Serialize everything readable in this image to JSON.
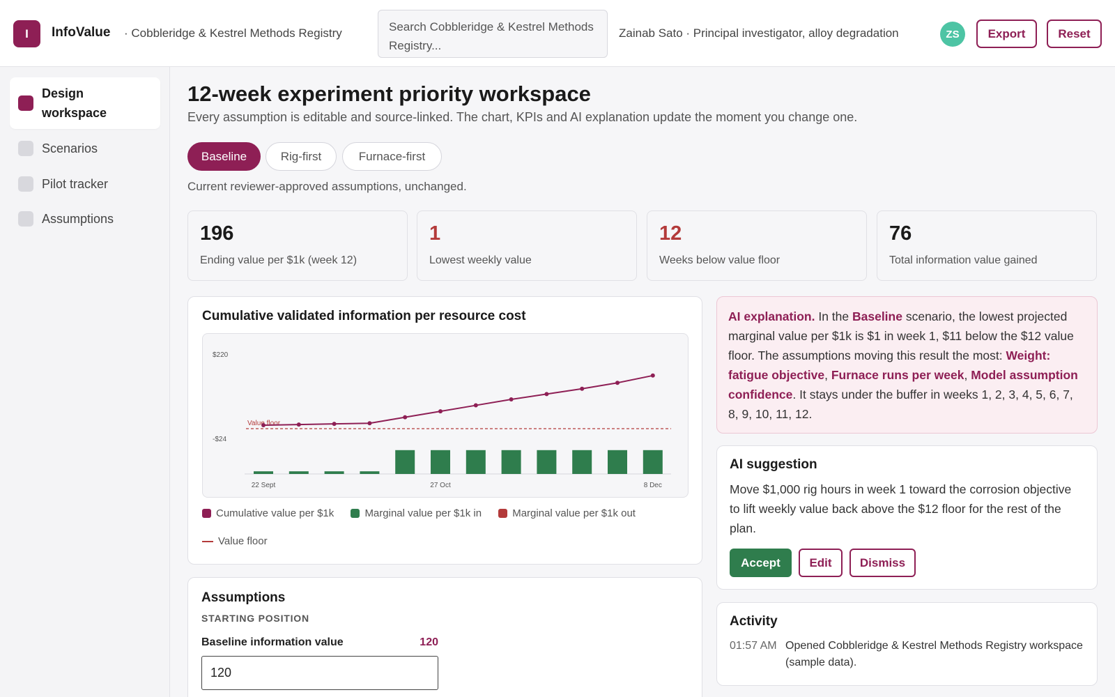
{
  "header": {
    "logo_letter": "I",
    "app_name": "InfoValue",
    "registry": "· Cobbleridge & Kestrel Methods Registry",
    "search_placeholder": "Search Cobbleridge & Kestrel Methods Registry...",
    "user": "Zainab Sato · Principal investigator, alloy degradation",
    "avatar_initials": "ZS",
    "export_label": "Export",
    "reset_label": "Reset"
  },
  "sidebar": {
    "items": [
      {
        "label": "Design workspace",
        "active": true
      },
      {
        "label": "Scenarios",
        "active": false
      },
      {
        "label": "Pilot tracker",
        "active": false
      },
      {
        "label": "Assumptions",
        "active": false
      }
    ]
  },
  "main": {
    "title": "12-week experiment priority workspace",
    "subtitle": "Every assumption is editable and source-linked. The chart, KPIs and AI explanation update the moment you change one.",
    "tabs": [
      {
        "label": "Baseline",
        "active": true
      },
      {
        "label": "Rig-first",
        "active": false
      },
      {
        "label": "Furnace-first",
        "active": false
      }
    ],
    "scenario_note": "Current reviewer-approved assumptions, unchanged."
  },
  "kpis": [
    {
      "value": "196",
      "label": "Ending value per $1k (week 12)",
      "alert": false
    },
    {
      "value": "1",
      "label": "Lowest weekly value",
      "alert": true
    },
    {
      "value": "12",
      "label": "Weeks below value floor",
      "alert": true
    },
    {
      "value": "76",
      "label": "Total information value gained",
      "alert": false
    }
  ],
  "chart_card": {
    "title": "Cumulative validated information per resource cost"
  },
  "chart_data": {
    "type": "bar",
    "title": "Cumulative validated information per resource cost",
    "y_tick_labels": [
      "$220",
      "-$24"
    ],
    "x_tick_labels": [
      "22 Sept",
      "27 Oct",
      "8 Dec"
    ],
    "value_floor_label": "Value floor",
    "series": [
      {
        "name": "Cumulative value per $1k",
        "kind": "line",
        "color": "#8e1f55",
        "values": [
          121,
          122,
          123,
          124,
          133,
          142,
          151,
          160,
          168,
          176,
          185,
          196
        ]
      },
      {
        "name": "Marginal value per $1k in",
        "kind": "bar",
        "color": "#2f7d4d",
        "values": [
          1,
          1,
          1,
          1,
          9,
          9,
          9,
          9,
          9,
          9,
          9,
          9
        ]
      },
      {
        "name": "Marginal value per $1k out",
        "kind": "bar",
        "color": "#b33a3a",
        "values": []
      }
    ],
    "value_floor": 12,
    "legend_extra": "Value floor",
    "ylim": [
      -24,
      220
    ]
  },
  "ai_explanation": {
    "lead": "AI explanation.",
    "t1": " In the ",
    "scenario": "Baseline",
    "t2": " scenario, the lowest projected marginal value per $1k is $1 in week 1, $11 below the $12 value floor. The assumptions moving this result the most: ",
    "a1": "Weight: fatigue objective",
    "sep1": ", ",
    "a2": "Furnace runs per week",
    "sep2": ", ",
    "a3": "Model assumption confidence",
    "t3": ". It stays under the buffer in weeks 1, 2, 3, 4, 5, 6, 7, 8, 9, 10, 11, 12."
  },
  "suggestion": {
    "title": "AI suggestion",
    "text": "Move $1,000 rig hours in week 1 toward the corrosion objective to lift weekly value back above the $12 floor for the rest of the plan.",
    "accept": "Accept",
    "edit": "Edit",
    "dismiss": "Dismiss"
  },
  "activity": {
    "title": "Activity",
    "entries": [
      {
        "time": "01:57 AM",
        "text": "Opened Cobbleridge & Kestrel Methods Registry workspace (sample data)."
      }
    ]
  },
  "assumptions": {
    "title": "Assumptions",
    "section": "STARTING POSITION",
    "field_label": "Baseline information value",
    "field_value_display": "120",
    "field_input_value": "120"
  }
}
